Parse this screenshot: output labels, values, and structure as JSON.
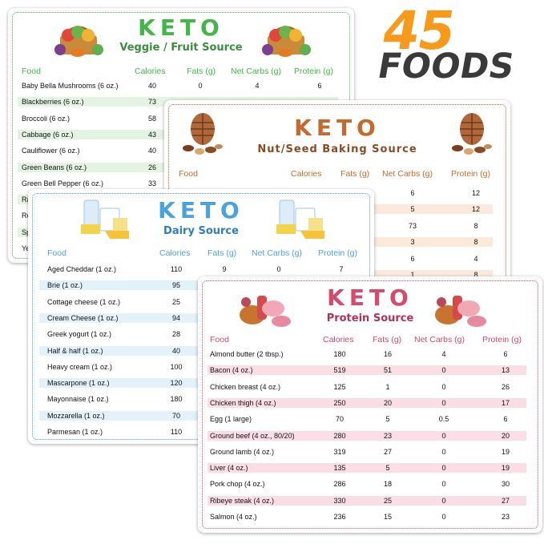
{
  "promo": {
    "count": "45",
    "label": "FOODS"
  },
  "veggie": {
    "title": "KETO",
    "subtitle": "Veggie / Fruit Source",
    "headers": [
      "Food",
      "Calories",
      "Fats (g)",
      "Net Carbs (g)",
      "Protein (g)"
    ],
    "rows": [
      {
        "food": "Baby Bella Mushrooms (6 oz.)",
        "cal": "40",
        "fat": "0",
        "carbs": "4",
        "protein": "6"
      },
      {
        "food": "Blackberries (6 oz.)",
        "cal": "73",
        "fat": "",
        "carbs": "",
        "protein": ""
      },
      {
        "food": "Broccoli (6 oz.)",
        "cal": "58",
        "fat": "",
        "carbs": "",
        "protein": ""
      },
      {
        "food": "Cabbage (6 oz.)",
        "cal": "43",
        "fat": "",
        "carbs": "",
        "protein": ""
      },
      {
        "food": "Cauliflower (6 oz.)",
        "cal": "40",
        "fat": "",
        "carbs": "",
        "protein": ""
      },
      {
        "food": "Green Beans (6 oz.)",
        "cal": "26",
        "fat": "",
        "carbs": "",
        "protein": ""
      },
      {
        "food": "Green Bell Pepper (6 oz.)",
        "cal": "33",
        "fat": "",
        "carbs": "",
        "protein": ""
      },
      {
        "food": "Ras",
        "cal": "",
        "fat": "",
        "carbs": "",
        "protein": ""
      },
      {
        "food": "Ror",
        "cal": "",
        "fat": "",
        "carbs": "",
        "protein": ""
      },
      {
        "food": "Spi",
        "cal": "",
        "fat": "",
        "carbs": "",
        "protein": ""
      },
      {
        "food": "Yel",
        "cal": "",
        "fat": "",
        "carbs": "",
        "protein": ""
      }
    ]
  },
  "nut": {
    "title": "KETO",
    "subtitle": "Nut/Seed Baking Source",
    "headers": [
      "Food",
      "Calories",
      "Fats (g)",
      "Net Carbs (g)",
      "Protein (g)"
    ],
    "rows": [
      {
        "carbs": "6",
        "protein": "12"
      },
      {
        "carbs": "5",
        "protein": "12"
      },
      {
        "carbs": "73",
        "protein": "8"
      },
      {
        "carbs": "3",
        "protein": "8"
      },
      {
        "carbs": "6",
        "protein": "4"
      },
      {
        "carbs": "1",
        "protein": "8"
      }
    ]
  },
  "dairy": {
    "title": "KETO",
    "subtitle": "Dairy Source",
    "headers": [
      "Food",
      "Calories",
      "Fats (g)",
      "Net Carbs (g)",
      "Protein (g)"
    ],
    "rows": [
      {
        "food": "Aged Cheddar (1 oz.)",
        "cal": "110",
        "fat": "9",
        "carbs": "0",
        "protein": "7"
      },
      {
        "food": "Brie (1 oz.)",
        "cal": "95"
      },
      {
        "food": "Cottage cheese (1 oz.)",
        "cal": "25"
      },
      {
        "food": "Cream Cheese (1 oz.)",
        "cal": "94"
      },
      {
        "food": "Greek yogurt (1 oz.)",
        "cal": "28"
      },
      {
        "food": "Half & half (1 oz.)",
        "cal": "40"
      },
      {
        "food": "Heavy cream (1 oz.)",
        "cal": "100"
      },
      {
        "food": "Mascarpone (1 oz.)",
        "cal": "120"
      },
      {
        "food": "Mayonnaise (1 oz.)",
        "cal": "180"
      },
      {
        "food": "Mozzarella (1 oz.)",
        "cal": "70"
      },
      {
        "food": "Parmesan (1 oz.)",
        "cal": "110"
      }
    ]
  },
  "protein": {
    "title": "KETO",
    "subtitle": "Protein Source",
    "headers": [
      "Food",
      "Calories",
      "Fats (g)",
      "Net Carbs (g)",
      "Protein (g)"
    ],
    "rows": [
      {
        "food": "Almond butter (2 tbsp.)",
        "cal": "180",
        "fat": "16",
        "carbs": "4",
        "protein": "6"
      },
      {
        "food": "Bacon (4 oz.)",
        "cal": "519",
        "fat": "51",
        "carbs": "0",
        "protein": "13"
      },
      {
        "food": "Chicken breast (4 oz.)",
        "cal": "125",
        "fat": "1",
        "carbs": "0",
        "protein": "26"
      },
      {
        "food": "Chicken thigh (4 oz.)",
        "cal": "250",
        "fat": "20",
        "carbs": "0",
        "protein": "17"
      },
      {
        "food": "Egg (1 large)",
        "cal": "70",
        "fat": "5",
        "carbs": "0.5",
        "protein": "6"
      },
      {
        "food": "Ground beef (4 oz., 80/20)",
        "cal": "280",
        "fat": "23",
        "carbs": "0",
        "protein": "20"
      },
      {
        "food": "Ground lamb (4 oz.)",
        "cal": "319",
        "fat": "27",
        "carbs": "0",
        "protein": "19"
      },
      {
        "food": "Liver (4 oz.)",
        "cal": "135",
        "fat": "5",
        "carbs": "0",
        "protein": "19"
      },
      {
        "food": "Pork chop (4 oz.)",
        "cal": "286",
        "fat": "18",
        "carbs": "0",
        "protein": "30"
      },
      {
        "food": "Ribeye steak (4 oz.)",
        "cal": "330",
        "fat": "25",
        "carbs": "0",
        "protein": "27"
      },
      {
        "food": "Salmon (4 oz.)",
        "cal": "236",
        "fat": "15",
        "carbs": "0",
        "protein": "23"
      }
    ]
  },
  "colors": {
    "veggie": "#43b649",
    "veggie_sub": "#3b8e3f",
    "veggie_stripe": "#e3f4e3",
    "nut": "#c46a2e",
    "nut_sub": "#8a4b24",
    "nut_stripe": "#fbeadb",
    "dairy": "#4aa3dd",
    "dairy_sub": "#2f7dbf",
    "dairy_stripe": "#e3f1fb",
    "protein": "#d64a6b",
    "protein_sub": "#b03356",
    "protein_stripe": "#fadde5",
    "promo_orange": "#f79a1c",
    "promo_dark": "#3a3a3a"
  }
}
